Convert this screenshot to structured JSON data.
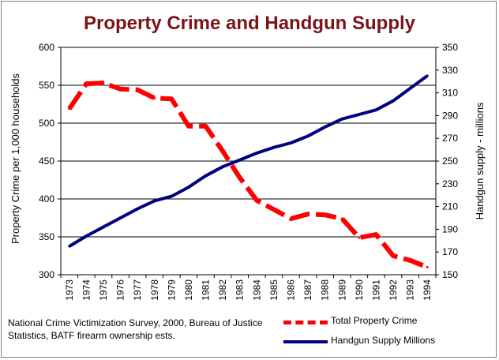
{
  "chart_data": {
    "type": "line",
    "title": "Property Crime and Handgun Supply",
    "ylabel": "Property Crime per 1,000 households",
    "y2label": "Handgun supply - millions",
    "xlabel": "",
    "ylim": [
      300,
      600
    ],
    "y2lim": [
      150,
      350
    ],
    "yticks": [
      300,
      350,
      400,
      450,
      500,
      550,
      600
    ],
    "y2ticks": [
      150,
      170,
      190,
      210,
      230,
      250,
      270,
      290,
      310,
      330,
      350
    ],
    "grid": "horizontal",
    "legend_position": "bottom-right",
    "categories": [
      "1973",
      "1974",
      "1975",
      "1976",
      "1977",
      "1978",
      "1979",
      "1980",
      "1981",
      "1982",
      "1983",
      "1984",
      "1985",
      "1986",
      "1987",
      "1988",
      "1989",
      "1990",
      "1991",
      "1992",
      "1993",
      "1994"
    ],
    "series": [
      {
        "name": "Total Property Crime",
        "axis": "left",
        "color": "#ff0000",
        "style": "dashed",
        "values": [
          519,
          552,
          553,
          545,
          544,
          533,
          532,
          496,
          496,
          463,
          428,
          398,
          386,
          374,
          380,
          379,
          374,
          349,
          353,
          325,
          319,
          310
        ]
      },
      {
        "name": "Handgun Supply Millions",
        "axis": "right",
        "color": "#00007f",
        "style": "solid",
        "values": [
          175,
          184,
          192,
          200,
          208,
          215,
          219,
          227,
          237,
          245,
          251,
          257,
          262,
          266,
          272,
          280,
          287,
          291,
          295,
          303,
          314,
          325
        ]
      }
    ]
  },
  "source_note": "National Crime Victimization Survey, 2000, Bureau of Justice Statistics, BATF firearm ownership ests."
}
